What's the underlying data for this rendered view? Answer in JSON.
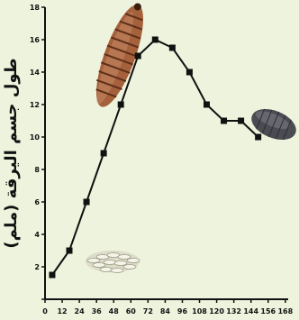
{
  "chart_data": {
    "type": "line",
    "title": "",
    "xlabel": "",
    "ylabel": "طول جسم اليرقة (ملم)",
    "xlim": [
      0,
      170
    ],
    "ylim": [
      0,
      18
    ],
    "x_ticks": [
      "0",
      "12",
      "24",
      "36",
      "48",
      "60",
      "72",
      "84",
      "96",
      "108",
      "120",
      "132",
      "144",
      "156",
      "168"
    ],
    "y_ticks": [
      "0",
      "2",
      "4",
      "6",
      "8",
      "10",
      "12",
      "14",
      "16",
      "18"
    ],
    "series": [
      {
        "x": [
          5,
          17,
          29,
          41,
          53,
          65,
          77,
          89,
          101,
          113,
          125,
          137,
          149
        ],
        "y": [
          1.5,
          3,
          6,
          9,
          12,
          15,
          16,
          15.5,
          14,
          12,
          11,
          11,
          10
        ]
      }
    ],
    "grid": false,
    "illustrations": [
      "maggot-larva",
      "eggs-cluster",
      "pupa"
    ]
  }
}
